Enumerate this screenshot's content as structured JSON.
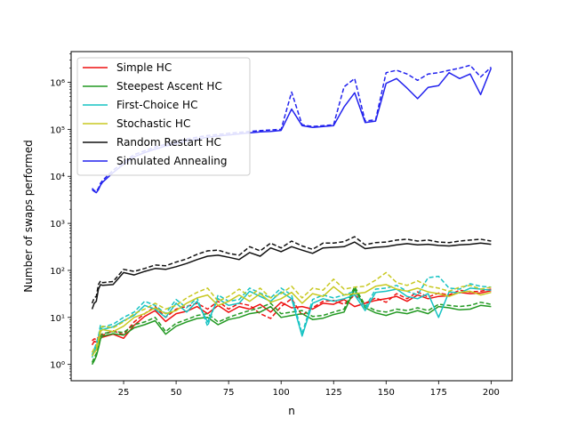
{
  "chart_data": {
    "type": "line",
    "title": "",
    "xlabel": "n",
    "ylabel": "Number of swaps performed",
    "xlim": [
      0,
      210
    ],
    "ylim": [
      0.45,
      4500000
    ],
    "yscale": "log",
    "grid": false,
    "legend_position": "top-left",
    "x_ticks": [
      {
        "value": 25,
        "label": "25"
      },
      {
        "value": 50,
        "label": "50"
      },
      {
        "value": 75,
        "label": "75"
      },
      {
        "value": 100,
        "label": "100"
      },
      {
        "value": 125,
        "label": "125"
      },
      {
        "value": 150,
        "label": "150"
      },
      {
        "value": 175,
        "label": "175"
      },
      {
        "value": 200,
        "label": "200"
      }
    ],
    "y_ticks": [
      {
        "value": 1,
        "label": "10⁰"
      },
      {
        "value": 10,
        "label": "10¹"
      },
      {
        "value": 100,
        "label": "10²"
      },
      {
        "value": 1000,
        "label": "10³"
      },
      {
        "value": 10000,
        "label": "10⁴"
      },
      {
        "value": 100000,
        "label": "10⁵"
      },
      {
        "value": 1000000,
        "label": "10⁶"
      }
    ],
    "x": [
      10,
      11,
      12,
      13,
      14,
      15,
      20,
      25,
      30,
      35,
      40,
      45,
      50,
      55,
      60,
      65,
      70,
      75,
      80,
      85,
      90,
      95,
      100,
      105,
      110,
      115,
      120,
      125,
      130,
      135,
      140,
      145,
      150,
      155,
      160,
      165,
      170,
      175,
      180,
      185,
      190,
      195,
      200
    ],
    "series": [
      {
        "name": "Simple HC",
        "color": "#ee1111",
        "style": "solid",
        "values": [
          2.6,
          3.1,
          3.0,
          3.3,
          4.1,
          3.8,
          4.4,
          3.6,
          6.8,
          10.5,
          14,
          8.2,
          12,
          13.5,
          17,
          12,
          18,
          12.8,
          17,
          15,
          19,
          13,
          21,
          16,
          17,
          15,
          20,
          19,
          24,
          17,
          20,
          23,
          25,
          28,
          22,
          30,
          25,
          28,
          29,
          34,
          32,
          33,
          37
        ]
      },
      {
        "name": "Simple HC",
        "color": "#ee1111",
        "style": "dashed",
        "values": [
          3.2,
          3.5,
          3.4,
          3.8,
          4.6,
          4.2,
          5.2,
          4.3,
          8,
          12,
          17,
          10,
          15,
          17,
          20,
          15,
          22,
          15,
          20,
          18,
          12,
          9.5,
          17,
          25,
          11,
          16,
          22,
          23,
          19,
          30,
          20,
          26,
          21,
          32,
          25,
          35,
          27,
          33,
          30,
          38,
          35,
          36,
          40
        ]
      },
      {
        "name": "Steepest Ascent HC",
        "color": "#229922",
        "style": "solid",
        "values": [
          1.0,
          1.2,
          1.5,
          2.2,
          3.5,
          4.0,
          4.5,
          4.2,
          6,
          7,
          8.5,
          4.4,
          6.5,
          8,
          9.5,
          10,
          7,
          9,
          10,
          12,
          13,
          17,
          10,
          11,
          12,
          9,
          9.6,
          11.5,
          13,
          40,
          16,
          12.5,
          11,
          13,
          12,
          14,
          12,
          17,
          16,
          14.5,
          15,
          18,
          17
        ]
      },
      {
        "name": "Steepest Ascent HC",
        "color": "#229922",
        "style": "dashed",
        "values": [
          1.1,
          1.4,
          1.7,
          2.5,
          4,
          4.5,
          5,
          4.8,
          7,
          8,
          10,
          5,
          7.5,
          9,
          11,
          12,
          8,
          10,
          12,
          14,
          16,
          20,
          12,
          13,
          14,
          10.5,
          11,
          13,
          15,
          45,
          18,
          14,
          13,
          15,
          14,
          16,
          14,
          19,
          18,
          17,
          18,
          21,
          19
        ]
      },
      {
        "name": "First-Choice HC",
        "color": "#17c3c3",
        "style": "solid",
        "values": [
          1.4,
          1.9,
          2.4,
          3.5,
          6,
          5.5,
          6.3,
          8.5,
          11,
          18,
          15,
          10,
          20,
          13,
          22,
          8,
          25,
          18,
          20,
          36,
          28,
          22,
          35,
          25,
          4.0,
          20,
          25,
          22,
          25,
          30,
          14,
          34,
          36,
          40,
          28,
          25,
          32,
          10,
          35,
          33,
          42,
          40,
          38
        ]
      },
      {
        "name": "First-Choice HC",
        "color": "#17c3c3",
        "style": "dashed",
        "values": [
          1.6,
          2.1,
          2.8,
          4,
          7,
          6.2,
          7.2,
          10,
          13,
          22,
          18,
          12,
          24,
          16,
          26,
          6.5,
          30,
          22,
          24,
          42,
          33,
          26,
          42,
          30,
          4.5,
          24,
          30,
          26,
          30,
          36,
          16,
          40,
          42,
          48,
          36,
          30,
          70,
          75,
          42,
          40,
          52,
          46,
          44
        ]
      },
      {
        "name": "Stochastic HC",
        "color": "#c8c820",
        "style": "solid",
        "values": [
          1.5,
          1.8,
          2.0,
          3,
          5,
          5.5,
          5,
          6.5,
          10,
          12,
          16,
          12,
          14,
          20,
          26,
          30,
          18,
          22,
          30,
          22,
          32,
          21,
          25,
          34,
          20,
          32,
          28,
          45,
          30,
          32,
          34,
          46,
          50,
          40,
          36,
          42,
          35,
          32,
          28,
          34,
          36,
          30,
          34
        ]
      },
      {
        "name": "Stochastic HC",
        "color": "#c8c820",
        "style": "dashed",
        "values": [
          1.8,
          2.2,
          2.4,
          3.5,
          6,
          6.5,
          6,
          8,
          12,
          15,
          20,
          15,
          18,
          26,
          34,
          42,
          22,
          28,
          40,
          28,
          42,
          26,
          32,
          46,
          26,
          42,
          38,
          65,
          40,
          44,
          46,
          62,
          90,
          55,
          48,
          60,
          46,
          42,
          36,
          44,
          48,
          40,
          44
        ]
      },
      {
        "name": "Random Restart HC",
        "color": "#111111",
        "style": "solid",
        "values": [
          15,
          20,
          22,
          40,
          50,
          48,
          50,
          90,
          80,
          95,
          110,
          105,
          120,
          140,
          170,
          200,
          210,
          190,
          170,
          240,
          200,
          300,
          250,
          320,
          270,
          230,
          300,
          310,
          320,
          400,
          290,
          310,
          320,
          350,
          370,
          350,
          360,
          340,
          330,
          350,
          360,
          380,
          360
        ]
      },
      {
        "name": "Random Restart HC",
        "color": "#111111",
        "style": "dashed",
        "values": [
          20,
          26,
          28,
          50,
          60,
          55,
          58,
          105,
          95,
          110,
          130,
          125,
          150,
          175,
          220,
          260,
          270,
          230,
          210,
          320,
          260,
          380,
          300,
          420,
          330,
          280,
          380,
          380,
          410,
          520,
          350,
          390,
          400,
          440,
          460,
          420,
          440,
          400,
          390,
          420,
          440,
          460,
          420
        ]
      },
      {
        "name": "Simulated Annealing",
        "color": "#2222ee",
        "style": "solid",
        "values": [
          5200,
          4800,
          4500,
          5200,
          6500,
          7500,
          12000,
          18000,
          26000,
          32000,
          38000,
          44000,
          50000,
          56000,
          62000,
          68000,
          72000,
          76000,
          80000,
          84000,
          88000,
          90000,
          95000,
          270000,
          120000,
          110000,
          115000,
          120000,
          300000,
          600000,
          140000,
          150000,
          950000,
          1200000,
          750000,
          450000,
          780000,
          850000,
          1600000,
          1200000,
          1500000,
          550000,
          2000000
        ]
      },
      {
        "name": "Simulated Annealing",
        "color": "#2222ee",
        "style": "dashed",
        "values": [
          5600,
          5000,
          4800,
          5600,
          7200,
          8200,
          13500,
          20000,
          29000,
          35000,
          42000,
          48000,
          55000,
          62000,
          68000,
          74000,
          78000,
          82000,
          86000,
          90000,
          94000,
          97000,
          100000,
          620000,
          125000,
          115000,
          120000,
          125000,
          800000,
          1200000,
          150000,
          160000,
          1600000,
          1800000,
          1500000,
          1100000,
          1500000,
          1600000,
          1800000,
          2000000,
          2300000,
          1300000,
          2100000
        ]
      }
    ],
    "legend": [
      {
        "label": "Simple HC",
        "color": "#ee1111"
      },
      {
        "label": "Steepest Ascent HC",
        "color": "#229922"
      },
      {
        "label": "First-Choice HC",
        "color": "#17c3c3"
      },
      {
        "label": "Stochastic HC",
        "color": "#c8c820"
      },
      {
        "label": "Random Restart HC",
        "color": "#111111"
      },
      {
        "label": "Simulated Annealing",
        "color": "#2222ee"
      }
    ]
  }
}
